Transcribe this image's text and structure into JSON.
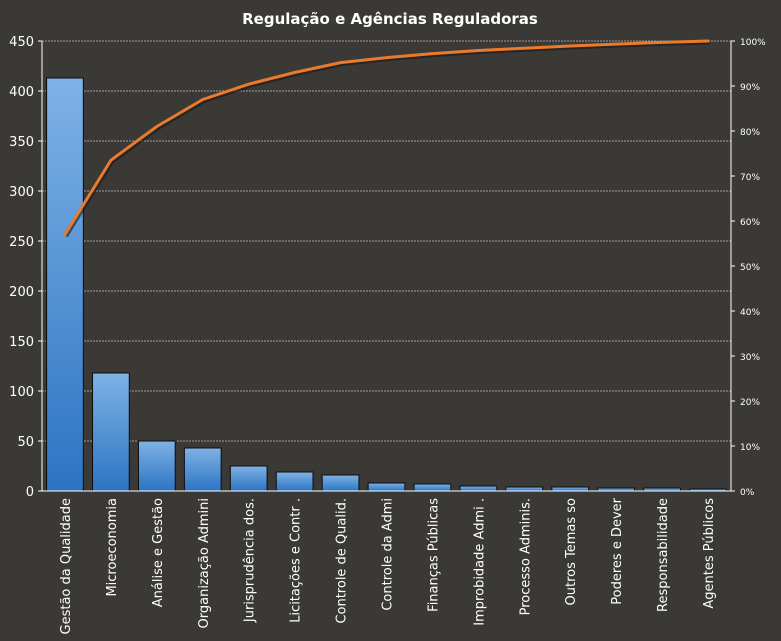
{
  "chart_data": {
    "type": "bar",
    "title": "Regulação e Agências Reguladoras",
    "categories": [
      "Gestão da Qualidade",
      "Microeconomia",
      "Análise e Gestão",
      "Organização Admini",
      "Jurisprudência dos.",
      "Licitações e Contr .",
      "Controle de Qualid.",
      "Controle da Admi",
      "Finanças Públicas",
      "Improbidade  Admi  .",
      "Processo Adminis.",
      "Outros Temas so",
      "Poderes e Dever",
      "Responsabilidade",
      "Agentes Públicos"
    ],
    "series": [
      {
        "type": "bar",
        "axis": "left",
        "values": [
          413,
          118,
          50,
          43,
          25,
          19,
          16,
          8,
          7,
          5,
          4,
          4,
          3,
          3,
          2
        ]
      },
      {
        "type": "line",
        "axis": "right",
        "values": [
          57,
          73.5,
          81,
          87,
          90.4,
          93,
          95.2,
          96.3,
          97.2,
          97.9,
          98.4,
          98.9,
          99.3,
          99.7,
          100
        ]
      }
    ],
    "y_left": {
      "min": 0,
      "max": 450,
      "ticks": [
        "0",
        "50",
        "100",
        "150",
        "200",
        "250",
        "300",
        "350",
        "400",
        "450"
      ]
    },
    "y_right": {
      "min": 0,
      "max": 100,
      "ticks": [
        "0%",
        "10%",
        "20%",
        "30%",
        "40%",
        "50%",
        "60%",
        "70%",
        "80%",
        "90%",
        "100%"
      ]
    },
    "grid": true,
    "legend": "none",
    "colors": {
      "background": "#3b3936",
      "bar_top": "#7fb2e6",
      "bar_bottom": "#2c74c2",
      "bar_stroke": "#0d0d0d",
      "line": "#ea7a2c",
      "line_shadow": "#1a1a1a",
      "text": "#ffffff",
      "grid": "#bdbdbd"
    }
  }
}
